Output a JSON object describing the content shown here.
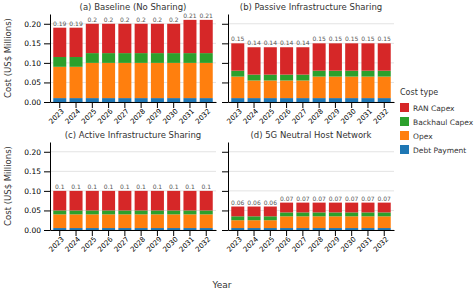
{
  "chart_data": [
    {
      "type": "bar",
      "stacked": true,
      "title": "(a) Baseline (No Sharing)",
      "y_label": "Cost (US$ Millions)",
      "categories": [
        "2023",
        "2024",
        "2025",
        "2026",
        "2027",
        "2028",
        "2029",
        "2030",
        "2031",
        "2032"
      ],
      "series": [
        {
          "name": "Debt Payment",
          "values": [
            0.01,
            0.01,
            0.01,
            0.01,
            0.01,
            0.01,
            0.01,
            0.01,
            0.01,
            0.01
          ]
        },
        {
          "name": "Opex",
          "values": [
            0.08,
            0.08,
            0.09,
            0.09,
            0.09,
            0.09,
            0.09,
            0.09,
            0.09,
            0.09
          ]
        },
        {
          "name": "Backhaul Capex",
          "values": [
            0.025,
            0.025,
            0.025,
            0.025,
            0.025,
            0.025,
            0.025,
            0.025,
            0.025,
            0.025
          ]
        },
        {
          "name": "RAN Capex",
          "values": [
            0.075,
            0.075,
            0.075,
            0.075,
            0.075,
            0.075,
            0.075,
            0.075,
            0.085,
            0.085
          ]
        }
      ],
      "totals": [
        0.19,
        0.19,
        0.2,
        0.2,
        0.2,
        0.2,
        0.2,
        0.2,
        0.21,
        0.21
      ],
      "data_labels": true,
      "ylim": [
        0,
        0.225
      ],
      "yticks": [
        {
          "value": 0,
          "label": "0.00"
        },
        {
          "value": 0.05,
          "label": "0.05"
        },
        {
          "value": 0.1,
          "label": "0.10"
        },
        {
          "value": 0.15,
          "label": "0.15"
        },
        {
          "value": 0.2,
          "label": "0.20"
        }
      ],
      "grid": true,
      "legend": "right",
      "legend_title": "Cost type"
    },
    {
      "type": "bar",
      "stacked": true,
      "title": "(b) Passive Infrastructure Sharing",
      "categories": [
        "2023",
        "2024",
        "2025",
        "2026",
        "2027",
        "2028",
        "2029",
        "2030",
        "2031",
        "2032"
      ],
      "series": [
        {
          "name": "Debt Payment",
          "values": [
            0.01,
            0.01,
            0.01,
            0.01,
            0.01,
            0.01,
            0.01,
            0.01,
            0.01,
            0.01
          ]
        },
        {
          "name": "Opex",
          "values": [
            0.055,
            0.045,
            0.045,
            0.045,
            0.045,
            0.055,
            0.055,
            0.055,
            0.055,
            0.055
          ]
        },
        {
          "name": "Backhaul Capex",
          "values": [
            0.015,
            0.015,
            0.015,
            0.015,
            0.015,
            0.015,
            0.015,
            0.015,
            0.015,
            0.015
          ]
        },
        {
          "name": "RAN Capex",
          "values": [
            0.07,
            0.07,
            0.07,
            0.07,
            0.07,
            0.07,
            0.07,
            0.07,
            0.07,
            0.07
          ]
        }
      ],
      "totals": [
        0.15,
        0.14,
        0.14,
        0.14,
        0.14,
        0.15,
        0.15,
        0.15,
        0.15,
        0.15
      ],
      "data_labels": true,
      "ylim": [
        0,
        0.225
      ],
      "yticks": [
        {
          "value": 0,
          "label": "0.00"
        },
        {
          "value": 0.05,
          "label": "0.05"
        },
        {
          "value": 0.1,
          "label": "0.10"
        },
        {
          "value": 0.15,
          "label": "0.15"
        },
        {
          "value": 0.2,
          "label": "0.20"
        }
      ],
      "grid": true,
      "tick_labels": "x"
    },
    {
      "type": "bar",
      "stacked": true,
      "title": "(c) Active Infrastructure Sharing",
      "y_label": "Cost (US$ Millions)",
      "x_label": "Year",
      "categories": [
        "2023",
        "2024",
        "2025",
        "2026",
        "2027",
        "2028",
        "2029",
        "2030",
        "2031",
        "2032"
      ],
      "series": [
        {
          "name": "Debt Payment",
          "values": [
            0.005,
            0.005,
            0.005,
            0.005,
            0.005,
            0.005,
            0.005,
            0.005,
            0.005,
            0.005
          ]
        },
        {
          "name": "Opex",
          "values": [
            0.035,
            0.035,
            0.035,
            0.035,
            0.035,
            0.035,
            0.035,
            0.035,
            0.035,
            0.035
          ]
        },
        {
          "name": "Backhaul Capex",
          "values": [
            0.01,
            0.01,
            0.01,
            0.01,
            0.01,
            0.01,
            0.01,
            0.01,
            0.01,
            0.01
          ]
        },
        {
          "name": "RAN Capex",
          "values": [
            0.05,
            0.05,
            0.05,
            0.05,
            0.05,
            0.05,
            0.05,
            0.05,
            0.05,
            0.05
          ]
        }
      ],
      "totals": [
        0.1,
        0.1,
        0.1,
        0.1,
        0.1,
        0.1,
        0.1,
        0.1,
        0.1,
        0.1
      ],
      "data_labels": true,
      "ylim": [
        0,
        0.225
      ],
      "yticks": [
        {
          "value": 0,
          "label": "0.00"
        },
        {
          "value": 0.05,
          "label": "0.05"
        },
        {
          "value": 0.1,
          "label": "0.10"
        },
        {
          "value": 0.15,
          "label": "0.15"
        },
        {
          "value": 0.2,
          "label": "0.20"
        }
      ],
      "grid": true
    },
    {
      "type": "bar",
      "stacked": true,
      "title": "(d) 5G Neutral Host Network",
      "categories": [
        "2023",
        "2024",
        "2025",
        "2026",
        "2027",
        "2028",
        "2029",
        "2030",
        "2031",
        "2032"
      ],
      "series": [
        {
          "name": "Debt Payment",
          "values": [
            0.005,
            0.005,
            0.005,
            0.005,
            0.005,
            0.005,
            0.005,
            0.005,
            0.005,
            0.005
          ]
        },
        {
          "name": "Opex",
          "values": [
            0.02,
            0.02,
            0.02,
            0.03,
            0.03,
            0.03,
            0.03,
            0.03,
            0.03,
            0.03
          ]
        },
        {
          "name": "Backhaul Capex",
          "values": [
            0.01,
            0.01,
            0.01,
            0.01,
            0.01,
            0.01,
            0.01,
            0.01,
            0.01,
            0.01
          ]
        },
        {
          "name": "RAN Capex",
          "values": [
            0.025,
            0.025,
            0.025,
            0.025,
            0.025,
            0.025,
            0.025,
            0.025,
            0.025,
            0.025
          ]
        }
      ],
      "totals": [
        0.06,
        0.06,
        0.06,
        0.07,
        0.07,
        0.07,
        0.07,
        0.07,
        0.07,
        0.07
      ],
      "data_labels": true,
      "ylim": [
        0,
        0.225
      ],
      "yticks": [
        {
          "value": 0,
          "label": "0.00"
        },
        {
          "value": 0.05,
          "label": "0.05"
        },
        {
          "value": 0.1,
          "label": "0.10"
        },
        {
          "value": 0.15,
          "label": "0.15"
        },
        {
          "value": 0.2,
          "label": "0.20"
        }
      ],
      "grid": true,
      "tick_labels": "x"
    }
  ]
}
